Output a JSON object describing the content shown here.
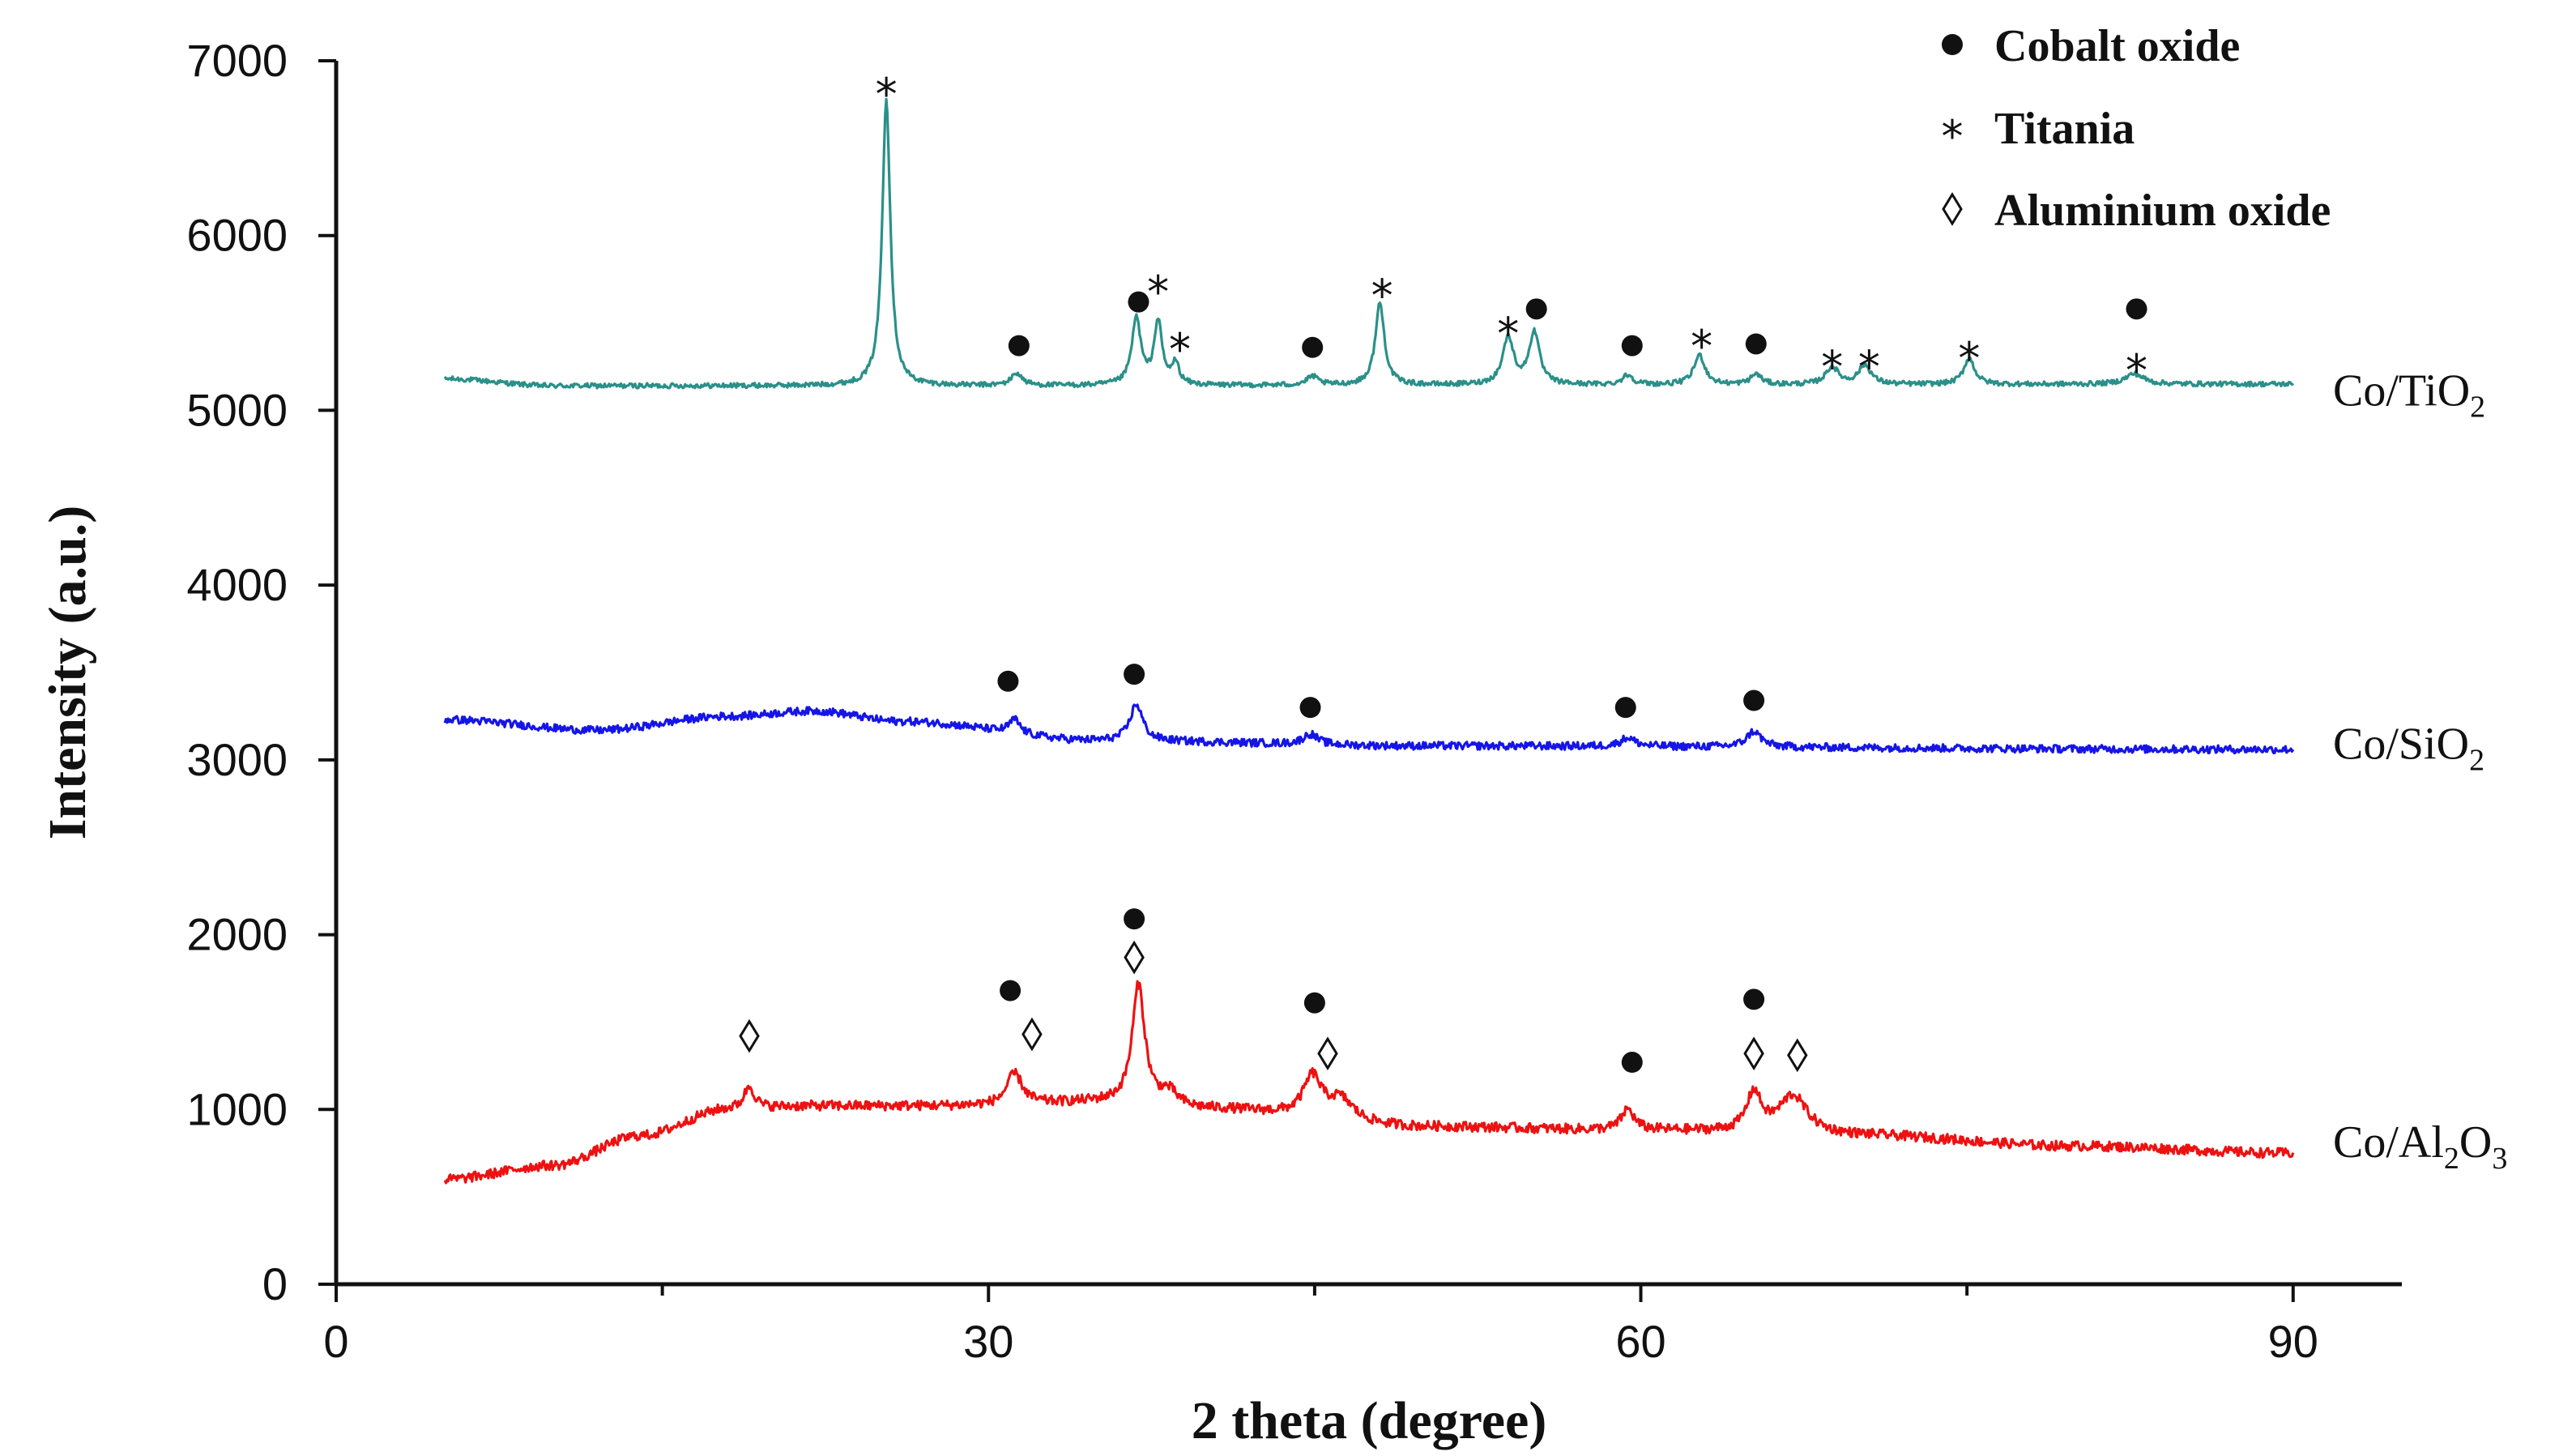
{
  "chart_data": {
    "type": "line",
    "xlabel": "2 theta (degree)",
    "ylabel": "Intensity (a.u.)",
    "xlim": [
      0,
      95
    ],
    "ylim": [
      0,
      7000
    ],
    "x_ticks": [
      0,
      30,
      60,
      90
    ],
    "x_minor_ticks": [
      15,
      45,
      75
    ],
    "y_ticks": [
      0,
      1000,
      2000,
      3000,
      4000,
      5000,
      6000,
      7000
    ],
    "grid": false,
    "legend_position": "top-right",
    "legend": [
      {
        "symbol": "●",
        "label": "Cobalt oxide"
      },
      {
        "symbol": "*",
        "label": "Titania"
      },
      {
        "symbol": "◊",
        "label": "Aluminium oxide"
      }
    ],
    "x_range": [
      5,
      90
    ],
    "series": [
      {
        "name": "Co/TiO2",
        "label_main": "Co/TiO",
        "label_sub": "2",
        "color": "#2a9089",
        "baseline": [
          [
            5,
            5180
          ],
          [
            10,
            5140
          ],
          [
            30,
            5140
          ],
          [
            60,
            5145
          ],
          [
            90,
            5150
          ]
        ],
        "noise": 14,
        "peaks": [
          [
            25.3,
            1650,
            0.22
          ],
          [
            31.3,
            70,
            0.3
          ],
          [
            36.8,
            380,
            0.25
          ],
          [
            37.8,
            360,
            0.22
          ],
          [
            38.6,
            120,
            0.2
          ],
          [
            44.9,
            50,
            0.3
          ],
          [
            48.0,
            470,
            0.25
          ],
          [
            53.9,
            270,
            0.3
          ],
          [
            55.1,
            300,
            0.28
          ],
          [
            59.4,
            55,
            0.3
          ],
          [
            62.7,
            170,
            0.3
          ],
          [
            65.3,
            60,
            0.3
          ],
          [
            68.8,
            100,
            0.35
          ],
          [
            70.3,
            110,
            0.35
          ],
          [
            75.1,
            150,
            0.3
          ],
          [
            82.7,
            60,
            0.5
          ]
        ]
      },
      {
        "name": "Co/SiO2",
        "label_main": "Co/SiO",
        "label_sub": "2",
        "color": "#1515e8",
        "baseline": [
          [
            5,
            3230
          ],
          [
            12,
            3170
          ],
          [
            18,
            3250
          ],
          [
            22,
            3280
          ],
          [
            26,
            3220
          ],
          [
            35,
            3110
          ],
          [
            50,
            3080
          ],
          [
            90,
            3060
          ]
        ],
        "noise": 22,
        "peaks": [
          [
            31.2,
            80,
            0.3
          ],
          [
            36.8,
            210,
            0.35
          ],
          [
            44.8,
            60,
            0.4
          ],
          [
            59.4,
            50,
            0.4
          ],
          [
            65.2,
            90,
            0.4
          ]
        ]
      },
      {
        "name": "Co/Al2O3",
        "label_main": "Co/Al",
        "label_sub": "2",
        "label_tail": "O",
        "label_sub2": "3",
        "color": "#ee1111",
        "baseline": [
          [
            5,
            600
          ],
          [
            10,
            680
          ],
          [
            14,
            850
          ],
          [
            18,
            1000
          ],
          [
            22,
            1020
          ],
          [
            30,
            1020
          ],
          [
            35,
            1040
          ],
          [
            40,
            1000
          ],
          [
            50,
            900
          ],
          [
            60,
            880
          ],
          [
            70,
            850
          ],
          [
            80,
            790
          ],
          [
            90,
            750
          ]
        ],
        "noise": 28,
        "peaks": [
          [
            19.0,
            130,
            0.3
          ],
          [
            31.2,
            180,
            0.45
          ],
          [
            36.9,
            680,
            0.35
          ],
          [
            38.3,
            80,
            0.5
          ],
          [
            44.9,
            230,
            0.5
          ],
          [
            46.2,
            120,
            0.7
          ],
          [
            59.4,
            120,
            0.35
          ],
          [
            65.2,
            220,
            0.4
          ],
          [
            67.0,
            220,
            0.8
          ]
        ]
      }
    ],
    "annotations": [
      {
        "symbol": "*",
        "x": 25.3,
        "y": 6860
      },
      {
        "symbol": "●",
        "x": 31.4,
        "y": 5370
      },
      {
        "symbol": "●",
        "x": 36.9,
        "y": 5620
      },
      {
        "symbol": "*",
        "x": 37.8,
        "y": 5730
      },
      {
        "symbol": "*",
        "x": 38.8,
        "y": 5400
      },
      {
        "symbol": "●",
        "x": 44.9,
        "y": 5360
      },
      {
        "symbol": "*",
        "x": 48.1,
        "y": 5710
      },
      {
        "symbol": "*",
        "x": 53.9,
        "y": 5490
      },
      {
        "symbol": "●",
        "x": 55.2,
        "y": 5580
      },
      {
        "symbol": "●",
        "x": 59.6,
        "y": 5370
      },
      {
        "symbol": "*",
        "x": 62.8,
        "y": 5420
      },
      {
        "symbol": "●",
        "x": 65.3,
        "y": 5380
      },
      {
        "symbol": "*",
        "x": 68.8,
        "y": 5300
      },
      {
        "symbol": "*",
        "x": 70.5,
        "y": 5300
      },
      {
        "symbol": "*",
        "x": 75.1,
        "y": 5350
      },
      {
        "symbol": "●",
        "x": 82.8,
        "y": 5580
      },
      {
        "symbol": "*",
        "x": 82.8,
        "y": 5280
      },
      {
        "symbol": "●",
        "x": 30.9,
        "y": 3450
      },
      {
        "symbol": "●",
        "x": 36.7,
        "y": 3490
      },
      {
        "symbol": "●",
        "x": 44.8,
        "y": 3300
      },
      {
        "symbol": "●",
        "x": 59.3,
        "y": 3300
      },
      {
        "symbol": "●",
        "x": 65.2,
        "y": 3340
      },
      {
        "symbol": "◊",
        "x": 19.0,
        "y": 1420
      },
      {
        "symbol": "●",
        "x": 31.0,
        "y": 1680
      },
      {
        "symbol": "◊",
        "x": 32.0,
        "y": 1430
      },
      {
        "symbol": "●",
        "x": 36.7,
        "y": 2090
      },
      {
        "symbol": "◊",
        "x": 36.7,
        "y": 1870
      },
      {
        "symbol": "●",
        "x": 45.0,
        "y": 1610
      },
      {
        "symbol": "◊",
        "x": 45.6,
        "y": 1320
      },
      {
        "symbol": "●",
        "x": 59.6,
        "y": 1270
      },
      {
        "symbol": "●",
        "x": 65.2,
        "y": 1630
      },
      {
        "symbol": "◊",
        "x": 65.2,
        "y": 1320
      },
      {
        "symbol": "◊",
        "x": 67.2,
        "y": 1310
      }
    ]
  }
}
